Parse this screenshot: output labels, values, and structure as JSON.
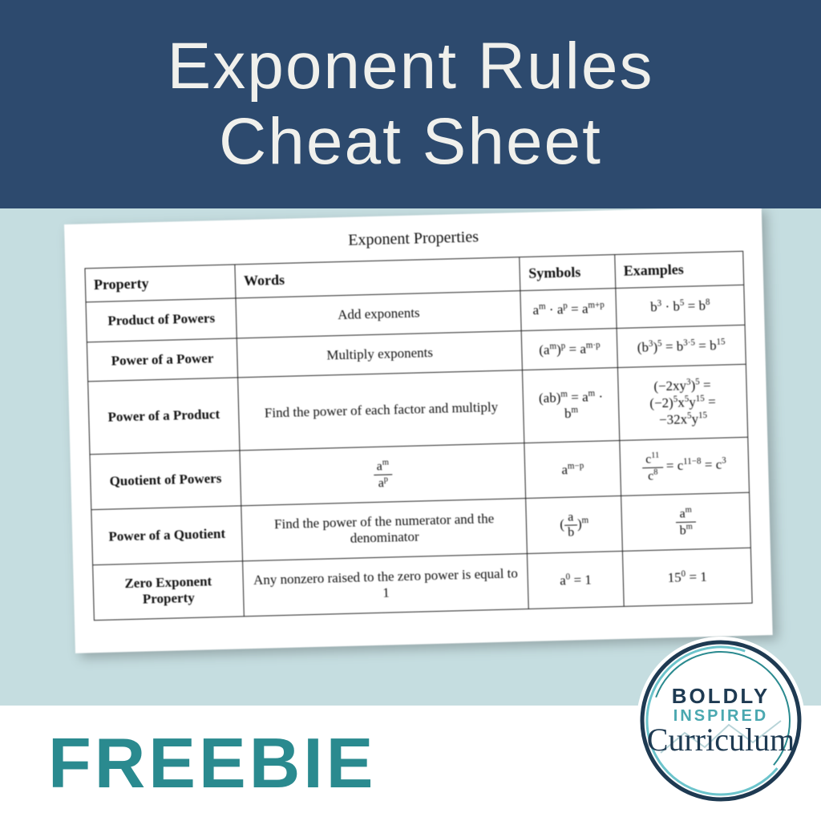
{
  "header": {
    "line1": "Exponent Rules",
    "line2": "Cheat Sheet"
  },
  "colors": {
    "header_bg": "#2d4a6e",
    "header_text": "#f0f0ec",
    "middle_bg": "#c5dde0",
    "footer_bg": "#ffffff",
    "freebie_color": "#2a8a8f",
    "logo_navy": "#1e3a52",
    "logo_teal": "#4aa8b0"
  },
  "sheet": {
    "title": "Exponent Properties",
    "columns": [
      "Property",
      "Words",
      "Symbols",
      "Examples"
    ],
    "rows": [
      {
        "property": "Product of Powers",
        "words": "Add exponents",
        "symbols": "a<sup>m</sup> · a<sup>p</sup> = a<sup>m+p</sup>",
        "examples": "b<sup>3</sup> · b<sup>5</sup> = b<sup>8</sup>"
      },
      {
        "property": "Power of a Power",
        "words": "Multiply exponents",
        "symbols": "(a<sup>m</sup>)<sup>p</sup> = a<sup>m·p</sup>",
        "examples": "(b<sup>3</sup>)<sup>5</sup> = b<sup>3·5</sup> = b<sup>15</sup>"
      },
      {
        "property": "Power of a Product",
        "words": "Find the power of each factor and multiply",
        "symbols": "(ab)<sup>m</sup> = a<sup>m</sup> · b<sup>m</sup>",
        "examples": "(−2xy<sup>3</sup>)<sup>5</sup> =<br>(−2)<sup>5</sup>x<sup>5</sup>y<sup>15</sup> = −32x<sup>5</sup>y<sup>15</sup>"
      },
      {
        "property": "Quotient of Powers",
        "words": "<span class='frac'><span class='num'>a<sup>m</sup></span><span class='den'>a<sup>p</sup></span></span>",
        "symbols": "a<sup>m−p</sup>",
        "examples": "<span class='frac'><span class='num'>c<sup>11</sup></span><span class='den'>c<sup>8</sup></span></span> = c<sup>11−8</sup> = c<sup>3</sup>"
      },
      {
        "property": "Power of a Quotient",
        "words": "Find the power of the numerator and the denominator",
        "symbols": "(<span class='frac'><span class='num'>a</span><span class='den'>b</span></span>)<sup>m</sup>",
        "examples": "<span class='frac'><span class='num'>a<sup>m</sup></span><span class='den'>b<sup>m</sup></span></span>"
      },
      {
        "property": "Zero Exponent Property",
        "words": "Any nonzero raised to the zero power is equal to 1",
        "symbols": "a<sup>0</sup> = 1",
        "examples": "15<sup>0</sup> = 1"
      }
    ]
  },
  "footer": {
    "label": "FREEBIE"
  },
  "logo": {
    "line1": "BOLDLY",
    "line2": "INSPIRED",
    "line3": "Curriculum"
  }
}
